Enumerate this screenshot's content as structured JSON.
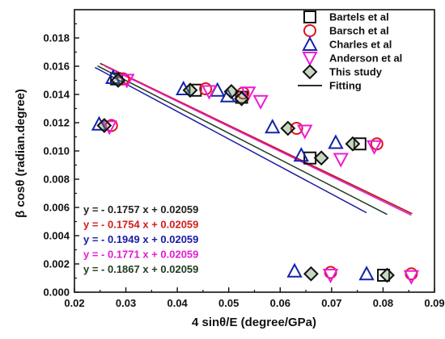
{
  "colors": {
    "bartels": "#111111",
    "barsch": "#e0121e",
    "charles": "#1424a8",
    "anderson": "#ee1bd4",
    "this_study": "#111111",
    "this_study_fill": "#5f8f4d",
    "eq_black": "#222222",
    "eq_red": "#d21e1e",
    "eq_blue": "#1a1aa6",
    "eq_magenta": "#e61ad2",
    "eq_green": "#1f3b1f"
  },
  "chart_data": {
    "type": "scatter",
    "xlabel": "4 sinθ/E (degree/GPa)",
    "ylabel": "β cosθ (radian.degree)",
    "xlim": [
      0.02,
      0.09
    ],
    "ylim": [
      0.0,
      0.02
    ],
    "x_ticks": [
      "0.02",
      "0.03",
      "0.04",
      "0.05",
      "0.06",
      "0.07",
      "0.08",
      "0.09"
    ],
    "y_ticks": [
      "0.000",
      "0.002",
      "0.004",
      "0.006",
      "0.008",
      "0.010",
      "0.012",
      "0.014",
      "0.016",
      "0.018"
    ],
    "x_tick_values": [
      0.02,
      0.03,
      0.04,
      0.05,
      0.06,
      0.07,
      0.08,
      0.09
    ],
    "y_tick_values": [
      0.0,
      0.002,
      0.004,
      0.006,
      0.008,
      0.01,
      0.012,
      0.014,
      0.016,
      0.018
    ],
    "grid": false,
    "legend_position": "top-right",
    "legend": [
      {
        "label": "Bartels et al",
        "marker": "square",
        "color_key": "bartels"
      },
      {
        "label": "Barsch et al",
        "marker": "circle",
        "color_key": "barsch"
      },
      {
        "label": "Charles et al",
        "marker": "triangle-up",
        "color_key": "charles"
      },
      {
        "label": "Anderson et al",
        "marker": "triangle-down",
        "color_key": "anderson"
      },
      {
        "label": "This study",
        "marker": "diamond",
        "color_key": "this_study"
      },
      {
        "label": "Fitting",
        "marker": "line",
        "color_key": "bartels"
      }
    ],
    "series": [
      {
        "name": "Bartels et al",
        "marker": "square",
        "color_key": "bartels",
        "points": [
          [
            0.0282,
            0.0151
          ],
          [
            0.0435,
            0.0143
          ],
          [
            0.0525,
            0.0138
          ],
          [
            0.0658,
            0.0095
          ],
          [
            0.0755,
            0.0105
          ],
          [
            0.0801,
            0.0012
          ]
        ]
      },
      {
        "name": "Barsch et al",
        "marker": "circle",
        "color_key": "barsch",
        "points": [
          [
            0.0295,
            0.0151
          ],
          [
            0.0272,
            0.0118
          ],
          [
            0.0455,
            0.0144
          ],
          [
            0.0528,
            0.0141
          ],
          [
            0.0632,
            0.0116
          ],
          [
            0.0698,
            0.0014
          ],
          [
            0.0788,
            0.0105
          ],
          [
            0.0855,
            0.0013
          ]
        ]
      },
      {
        "name": "Charles et al",
        "marker": "triangle-up",
        "color_key": "charles",
        "points": [
          [
            0.0248,
            0.0119
          ],
          [
            0.0275,
            0.0152
          ],
          [
            0.0412,
            0.0144
          ],
          [
            0.0478,
            0.0143
          ],
          [
            0.0498,
            0.0139
          ],
          [
            0.0585,
            0.0117
          ],
          [
            0.0641,
            0.0097
          ],
          [
            0.0708,
            0.0106
          ],
          [
            0.0628,
            0.0015
          ],
          [
            0.0768,
            0.0013
          ]
        ]
      },
      {
        "name": "Anderson et al",
        "marker": "triangle-down",
        "color_key": "anderson",
        "points": [
          [
            0.0268,
            0.0117
          ],
          [
            0.0302,
            0.015
          ],
          [
            0.0462,
            0.0142
          ],
          [
            0.0538,
            0.0141
          ],
          [
            0.0562,
            0.0135
          ],
          [
            0.0648,
            0.0114
          ],
          [
            0.0718,
            0.0094
          ],
          [
            0.0783,
            0.0103
          ],
          [
            0.0698,
            0.0012
          ],
          [
            0.0855,
            0.0011
          ]
        ]
      },
      {
        "name": "This study",
        "marker": "diamond",
        "color_key": "this_study",
        "points": [
          [
            0.0258,
            0.0118
          ],
          [
            0.0285,
            0.015
          ],
          [
            0.0425,
            0.0143
          ],
          [
            0.0505,
            0.0142
          ],
          [
            0.0525,
            0.0137
          ],
          [
            0.0615,
            0.0116
          ],
          [
            0.068,
            0.0095
          ],
          [
            0.0741,
            0.0105
          ],
          [
            0.066,
            0.0013
          ],
          [
            0.0808,
            0.0012
          ]
        ]
      }
    ],
    "fits": [
      {
        "equation": "y = - 0.1757 x + 0.02059",
        "color_key": "eq_black",
        "slope": -0.1757,
        "intercept": 0.02059,
        "x_range": [
          0.025,
          0.0855
        ]
      },
      {
        "equation": "y = - 0.1754 x + 0.02059",
        "color_key": "eq_red",
        "slope": -0.1754,
        "intercept": 0.02059,
        "x_range": [
          0.0255,
          0.0857
        ]
      },
      {
        "equation": "y = - 0.1949 x + 0.02059",
        "color_key": "eq_blue",
        "slope": -0.1949,
        "intercept": 0.02059,
        "x_range": [
          0.024,
          0.0768
        ]
      },
      {
        "equation": "y = - 0.1771 x + 0.02059",
        "color_key": "eq_magenta",
        "slope": -0.1771,
        "intercept": 0.02059,
        "x_range": [
          0.026,
          0.0855
        ]
      },
      {
        "equation": "y = - 0.1867 x + 0.02059",
        "color_key": "eq_green",
        "slope": -0.1867,
        "intercept": 0.02059,
        "x_range": [
          0.0245,
          0.0808
        ]
      }
    ]
  }
}
